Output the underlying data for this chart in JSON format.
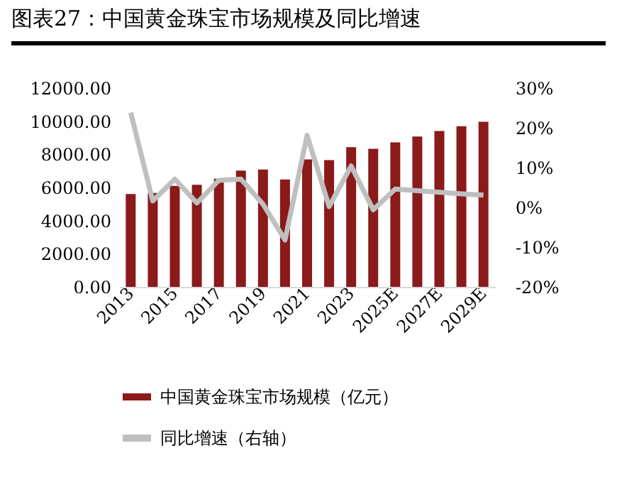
{
  "chart_data": {
    "type": "bar",
    "title": "图表27：中国黄金珠宝市场规模及同比增速",
    "categories": [
      "2013",
      null,
      "2015",
      null,
      "2017",
      null,
      "2019",
      null,
      "2021",
      null,
      "2023",
      null,
      "2025E",
      null,
      "2027E",
      null,
      "2029E"
    ],
    "series": [
      {
        "name": "中国黄金珠宝市场规模（亿元）",
        "color": "#8b1a1a",
        "values": [
          5600,
          5670,
          6100,
          6160,
          6530,
          7020,
          7080,
          6480,
          7690,
          7650,
          8430,
          8340,
          8720,
          9070,
          9410,
          9700,
          9960
        ]
      },
      {
        "name": "同比增速（右轴）",
        "type": "line",
        "axis": "y2",
        "color": "#bfbfbf",
        "values": [
          23.8,
          1.6,
          7.1,
          1.1,
          6.8,
          7.1,
          0.8,
          -8.2,
          18.1,
          0.2,
          10.4,
          -0.6,
          4.6,
          4.2,
          3.8,
          3.4,
          3.1
        ]
      }
    ],
    "ylim": [
      0,
      12000
    ],
    "yticks": [
      {
        "value": 0,
        "label": "0.00"
      },
      {
        "value": 2000,
        "label": "2000.00"
      },
      {
        "value": 4000,
        "label": "4000.00"
      },
      {
        "value": 6000,
        "label": "6000.00"
      },
      {
        "value": 8000,
        "label": "8000.00"
      },
      {
        "value": 10000,
        "label": "10000.00"
      },
      {
        "value": 12000,
        "label": "12000.00"
      }
    ],
    "y2lim": [
      -20,
      30
    ],
    "y2ticks": [
      {
        "value": -20,
        "label": "-20%"
      },
      {
        "value": -10,
        "label": "-10%"
      },
      {
        "value": 0,
        "label": "0%"
      },
      {
        "value": 10,
        "label": "10%"
      },
      {
        "value": 20,
        "label": "20%"
      },
      {
        "value": 30,
        "label": "30%"
      }
    ],
    "grid": false,
    "legend": "bottom",
    "marker": "none",
    "line_style": "solid"
  }
}
